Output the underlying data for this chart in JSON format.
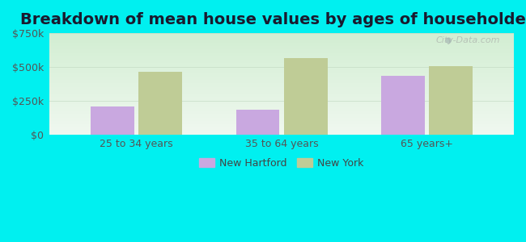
{
  "title": "Breakdown of mean house values by ages of householders",
  "categories": [
    "25 to 34 years",
    "35 to 64 years",
    "65 years+"
  ],
  "new_hartford": [
    210000,
    185000,
    435000
  ],
  "new_york": [
    465000,
    565000,
    505000
  ],
  "bar_color_nh": "#c9a8e0",
  "bar_color_ny": "#bfcc96",
  "ylim": [
    0,
    750000
  ],
  "yticks": [
    0,
    250000,
    500000,
    750000
  ],
  "ytick_labels": [
    "$0",
    "$250k",
    "$500k",
    "$750k"
  ],
  "background_color": "#00f0f0",
  "plot_bg_top": "#f0f8f0",
  "plot_bg_bottom": "#d8f0d0",
  "legend_nh": "New Hartford",
  "legend_ny": "New York",
  "title_fontsize": 14,
  "tick_fontsize": 9,
  "legend_fontsize": 9,
  "watermark": "City-Data.com"
}
